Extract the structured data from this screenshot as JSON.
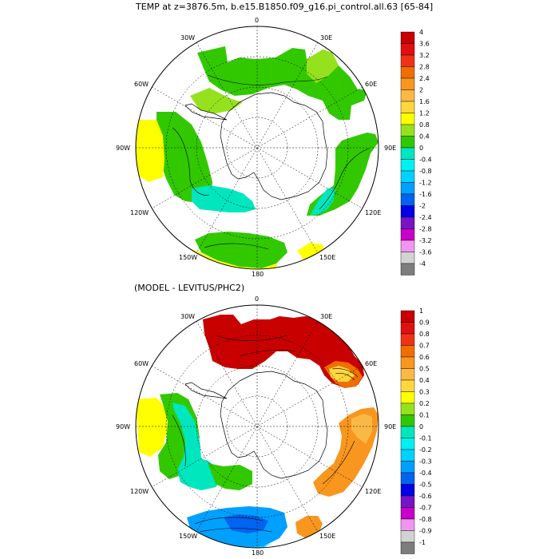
{
  "title": "TEMP at z=3876.5m, b.e15.B1850.f09_g16.pi_control.all.63 [65-84]",
  "subtitle": "(MODEL - LEVITUS/PHC2)",
  "longitude_labels": {
    "lon_0": "0",
    "lon_30E": "30E",
    "lon_60E": "60E",
    "lon_90E": "90E",
    "lon_120E": "120E",
    "lon_150E": "150E",
    "lon_180": "180",
    "lon_150W": "150W",
    "lon_120W": "120W",
    "lon_90W": "90W",
    "lon_60W": "60W",
    "lon_30W": "30W"
  },
  "colorbars": [
    {
      "labels": [
        "4",
        "3.6",
        "3.2",
        "2.8",
        "2.4",
        "2",
        "1.6",
        "1.2",
        "0.8",
        "0.4",
        "0",
        "-0.4",
        "-0.8",
        "-1.2",
        "-1.6",
        "-2",
        "-2.4",
        "-2.8",
        "-3.2",
        "-3.6",
        "-4"
      ],
      "colors": [
        "#c80000",
        "#e01010",
        "#f03214",
        "#f06e00",
        "#f8961e",
        "#fab946",
        "#ffd73c",
        "#ffff00",
        "#96e11e",
        "#32c800",
        "#00e6be",
        "#00f0f0",
        "#00d2ff",
        "#00a0ff",
        "#0064f0",
        "#0000e6",
        "#7814c8",
        "#c800c8",
        "#f096f0",
        "#d2d2d2",
        "#7d7d7d"
      ]
    },
    {
      "labels": [
        "1",
        "0.9",
        "0.8",
        "0.7",
        "0.6",
        "0.5",
        "0.4",
        "0.3",
        "0.2",
        "0.1",
        "0",
        "-0.1",
        "-0.2",
        "-0.3",
        "-0.4",
        "-0.5",
        "-0.6",
        "-0.7",
        "-0.8",
        "-0.9",
        "-1"
      ],
      "colors": [
        "#c80000",
        "#e01010",
        "#f03214",
        "#f06e00",
        "#f8961e",
        "#fab946",
        "#ffd73c",
        "#ffff00",
        "#96e11e",
        "#32c800",
        "#00e6be",
        "#00f0f0",
        "#00d2ff",
        "#00a0ff",
        "#0064f0",
        "#0000e6",
        "#7814c8",
        "#c800c8",
        "#f096f0",
        "#d2d2d2",
        "#7d7d7d"
      ]
    }
  ]
}
